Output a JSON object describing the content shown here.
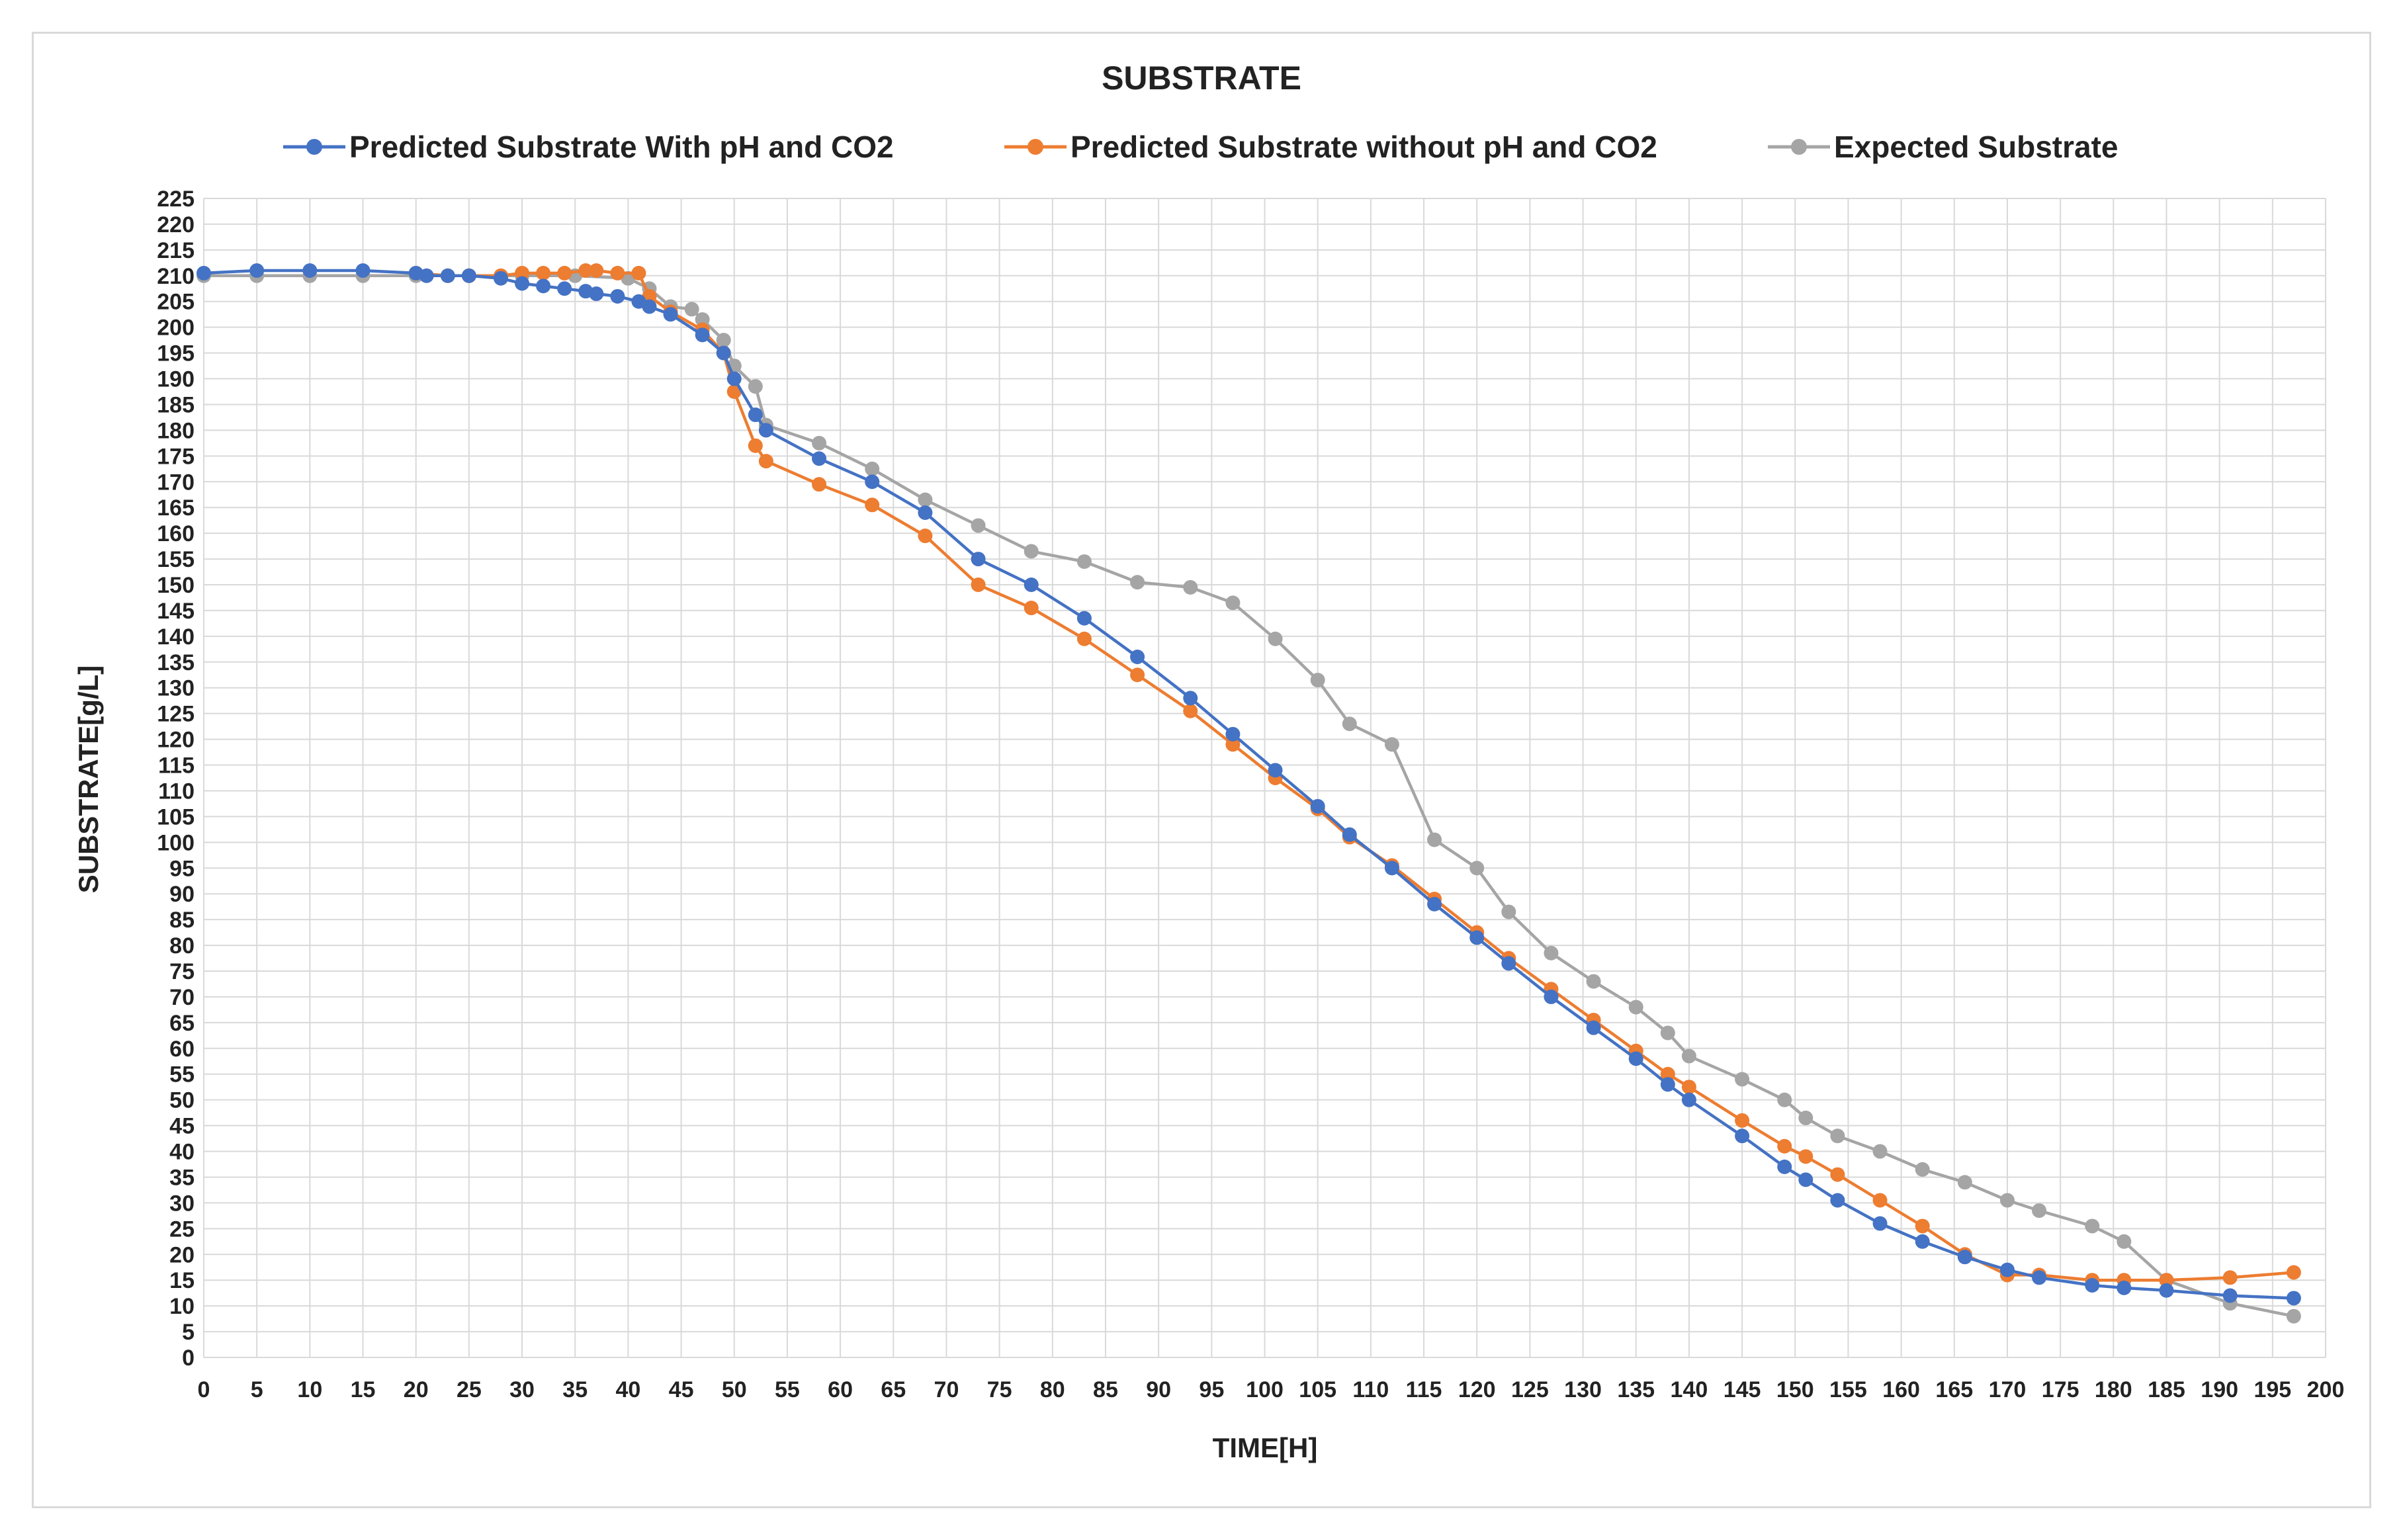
{
  "chart_data": {
    "type": "line",
    "title": "SUBSTRATE",
    "xlabel": "TIME[H]",
    "ylabel": "SUBSTRATE[g/L]",
    "xlim": [
      0,
      200
    ],
    "ylim": [
      0,
      225
    ],
    "x_tick_step": 5,
    "y_tick_step": 5,
    "grid": true,
    "legend_position": "top",
    "series": [
      {
        "name": "Predicted Substrate With pH and CO2",
        "color": "#4472c4",
        "points": [
          [
            0,
            210.5
          ],
          [
            5,
            211
          ],
          [
            10,
            211
          ],
          [
            15,
            211
          ],
          [
            20,
            210.5
          ],
          [
            21,
            210
          ],
          [
            23,
            210
          ],
          [
            25,
            210
          ],
          [
            28,
            209.5
          ],
          [
            30,
            208.5
          ],
          [
            32,
            208
          ],
          [
            34,
            207.5
          ],
          [
            36,
            207
          ],
          [
            37,
            206.5
          ],
          [
            39,
            206
          ],
          [
            41,
            205
          ],
          [
            42,
            204
          ],
          [
            44,
            202.5
          ],
          [
            47,
            198.5
          ],
          [
            49,
            195
          ],
          [
            50,
            190
          ],
          [
            52,
            183
          ],
          [
            53,
            180
          ],
          [
            58,
            174.5
          ],
          [
            63,
            170
          ],
          [
            68,
            164
          ],
          [
            73,
            155
          ],
          [
            78,
            150
          ],
          [
            83,
            143.5
          ],
          [
            88,
            136
          ],
          [
            93,
            128
          ],
          [
            97,
            121
          ],
          [
            101,
            114
          ],
          [
            105,
            107
          ],
          [
            108,
            101.5
          ],
          [
            112,
            95
          ],
          [
            116,
            88
          ],
          [
            120,
            81.5
          ],
          [
            123,
            76.5
          ],
          [
            127,
            70
          ],
          [
            131,
            64
          ],
          [
            135,
            58
          ],
          [
            138,
            53
          ],
          [
            140,
            50
          ],
          [
            145,
            43
          ],
          [
            149,
            37
          ],
          [
            151,
            34.5
          ],
          [
            154,
            30.5
          ],
          [
            158,
            26
          ],
          [
            162,
            22.5
          ],
          [
            166,
            19.5
          ],
          [
            170,
            17
          ],
          [
            173,
            15.5
          ],
          [
            178,
            14
          ],
          [
            181,
            13.5
          ],
          [
            185,
            13
          ],
          [
            191,
            12
          ],
          [
            197,
            11.5
          ]
        ]
      },
      {
        "name": "Predicted Substrate without pH and CO2",
        "color": "#ed7d31",
        "points": [
          [
            20,
            210.5
          ],
          [
            23,
            210
          ],
          [
            25,
            210
          ],
          [
            28,
            210
          ],
          [
            30,
            210.5
          ],
          [
            32,
            210.5
          ],
          [
            34,
            210.5
          ],
          [
            36,
            211
          ],
          [
            37,
            211
          ],
          [
            39,
            210.5
          ],
          [
            41,
            210.5
          ],
          [
            42,
            206
          ],
          [
            44,
            203
          ],
          [
            47,
            199.5
          ],
          [
            49,
            195
          ],
          [
            50,
            187.5
          ],
          [
            52,
            177
          ],
          [
            53,
            174
          ],
          [
            58,
            169.5
          ],
          [
            63,
            165.5
          ],
          [
            68,
            159.5
          ],
          [
            73,
            150
          ],
          [
            78,
            145.5
          ],
          [
            83,
            139.5
          ],
          [
            88,
            132.5
          ],
          [
            93,
            125.5
          ],
          [
            97,
            119
          ],
          [
            101,
            112.5
          ],
          [
            105,
            106.5
          ],
          [
            108,
            101
          ],
          [
            112,
            95.5
          ],
          [
            116,
            89
          ],
          [
            120,
            82.5
          ],
          [
            123,
            77.5
          ],
          [
            127,
            71.5
          ],
          [
            131,
            65.5
          ],
          [
            135,
            59.5
          ],
          [
            138,
            55
          ],
          [
            140,
            52.5
          ],
          [
            145,
            46
          ],
          [
            149,
            41
          ],
          [
            151,
            39
          ],
          [
            154,
            35.5
          ],
          [
            158,
            30.5
          ],
          [
            162,
            25.5
          ],
          [
            166,
            20
          ],
          [
            170,
            16
          ],
          [
            173,
            16
          ],
          [
            178,
            15
          ],
          [
            181,
            15
          ],
          [
            185,
            15
          ],
          [
            191,
            15.5
          ],
          [
            197,
            16.5
          ]
        ]
      },
      {
        "name": "Expected Substrate",
        "color": "#a5a5a5",
        "points": [
          [
            0,
            210
          ],
          [
            5,
            210
          ],
          [
            10,
            210
          ],
          [
            15,
            210
          ],
          [
            20,
            210
          ],
          [
            25,
            210
          ],
          [
            30,
            210
          ],
          [
            35,
            210
          ],
          [
            40,
            209.5
          ],
          [
            42,
            207.5
          ],
          [
            44,
            204
          ],
          [
            46,
            203.5
          ],
          [
            47,
            201.5
          ],
          [
            49,
            197.5
          ],
          [
            50,
            192.5
          ],
          [
            52,
            188.5
          ],
          [
            53,
            181
          ],
          [
            58,
            177.5
          ],
          [
            63,
            172.5
          ],
          [
            68,
            166.5
          ],
          [
            73,
            161.5
          ],
          [
            78,
            156.5
          ],
          [
            83,
            154.5
          ],
          [
            88,
            150.5
          ],
          [
            93,
            149.5
          ],
          [
            97,
            146.5
          ],
          [
            101,
            139.5
          ],
          [
            105,
            131.5
          ],
          [
            108,
            123
          ],
          [
            112,
            119
          ],
          [
            116,
            100.5
          ],
          [
            120,
            95
          ],
          [
            123,
            86.5
          ],
          [
            127,
            78.5
          ],
          [
            131,
            73
          ],
          [
            135,
            68
          ],
          [
            138,
            63
          ],
          [
            140,
            58.5
          ],
          [
            145,
            54
          ],
          [
            149,
            50
          ],
          [
            151,
            46.5
          ],
          [
            154,
            43
          ],
          [
            158,
            40
          ],
          [
            162,
            36.5
          ],
          [
            166,
            34
          ],
          [
            170,
            30.5
          ],
          [
            173,
            28.5
          ],
          [
            178,
            25.5
          ],
          [
            181,
            22.5
          ],
          [
            185,
            15
          ],
          [
            191,
            10.5
          ],
          [
            197,
            8
          ]
        ]
      }
    ]
  }
}
